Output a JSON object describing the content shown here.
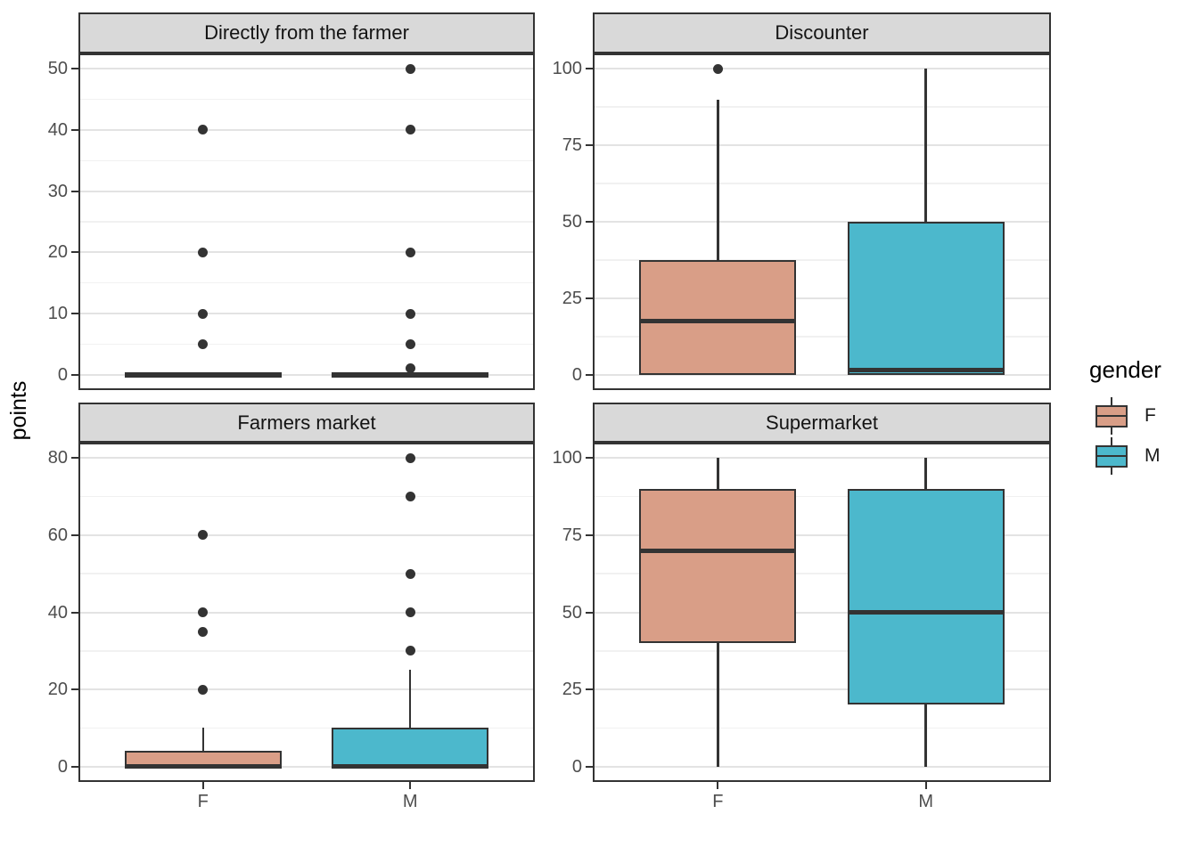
{
  "figure": {
    "background": "#ffffff",
    "facet_layout": {
      "rows": 2,
      "cols": 2,
      "scales": "free_y"
    }
  },
  "axis": {
    "y_title": "points",
    "x_categories": [
      "F",
      "M"
    ]
  },
  "legend": {
    "title": "gender",
    "position": "right",
    "items": [
      {
        "label": "F",
        "color": "#D99E87"
      },
      {
        "label": "M",
        "color": "#4CB8CC"
      }
    ]
  },
  "palette": {
    "F_fill": "#D99E87",
    "M_fill": "#4CB8CC",
    "stroke": "#333333",
    "strip_bg": "#D9D9D9",
    "grid_major": "#E3E3E3",
    "grid_minor": "#F1F1F1",
    "tick_text": "#4D4D4D"
  },
  "chart_data": [
    {
      "type": "boxplot",
      "title": "Directly from the farmer",
      "ylabel": "points",
      "categories": [
        "F",
        "M"
      ],
      "yticks": [
        0,
        10,
        20,
        30,
        40,
        50
      ],
      "ylim": [
        -2.5,
        52.5
      ],
      "grid": true,
      "series": [
        {
          "name": "F",
          "whisker_low": 0,
          "q1": 0,
          "median": 0,
          "q3": 0,
          "whisker_high": 0,
          "outliers": [
            5,
            10,
            20,
            40
          ]
        },
        {
          "name": "M",
          "whisker_low": 0,
          "q1": 0,
          "median": 0,
          "q3": 0,
          "whisker_high": 0,
          "outliers": [
            1,
            5,
            10,
            20,
            40,
            50
          ]
        }
      ]
    },
    {
      "type": "boxplot",
      "title": "Discounter",
      "ylabel": "points",
      "categories": [
        "F",
        "M"
      ],
      "yticks": [
        0,
        25,
        50,
        75,
        100
      ],
      "ylim": [
        -5,
        105
      ],
      "grid": true,
      "series": [
        {
          "name": "F",
          "whisker_low": 0,
          "q1": 0,
          "median": 17.5,
          "q3": 37.5,
          "whisker_high": 90,
          "outliers": [
            100
          ]
        },
        {
          "name": "M",
          "whisker_low": 0,
          "q1": 0,
          "median": 1.5,
          "q3": 50,
          "whisker_high": 100,
          "outliers": []
        }
      ]
    },
    {
      "type": "boxplot",
      "title": "Farmers market",
      "ylabel": "points",
      "categories": [
        "F",
        "M"
      ],
      "yticks": [
        0,
        20,
        40,
        60,
        80
      ],
      "ylim": [
        -4,
        84
      ],
      "grid": true,
      "series": [
        {
          "name": "F",
          "whisker_low": 0,
          "q1": 0,
          "median": 0,
          "q3": 4,
          "whisker_high": 10,
          "outliers": [
            20,
            35,
            40,
            60
          ]
        },
        {
          "name": "M",
          "whisker_low": 0,
          "q1": 0,
          "median": 0,
          "q3": 10,
          "whisker_high": 25,
          "outliers": [
            30,
            40,
            50,
            70,
            80
          ]
        }
      ]
    },
    {
      "type": "boxplot",
      "title": "Supermarket",
      "ylabel": "points",
      "categories": [
        "F",
        "M"
      ],
      "yticks": [
        0,
        25,
        50,
        75,
        100
      ],
      "ylim": [
        -5,
        105
      ],
      "grid": true,
      "series": [
        {
          "name": "F",
          "whisker_low": 0,
          "q1": 40,
          "median": 70,
          "q3": 90,
          "whisker_high": 100,
          "outliers": []
        },
        {
          "name": "M",
          "whisker_low": 0,
          "q1": 20,
          "median": 50,
          "q3": 90,
          "whisker_high": 100,
          "outliers": []
        }
      ]
    }
  ]
}
